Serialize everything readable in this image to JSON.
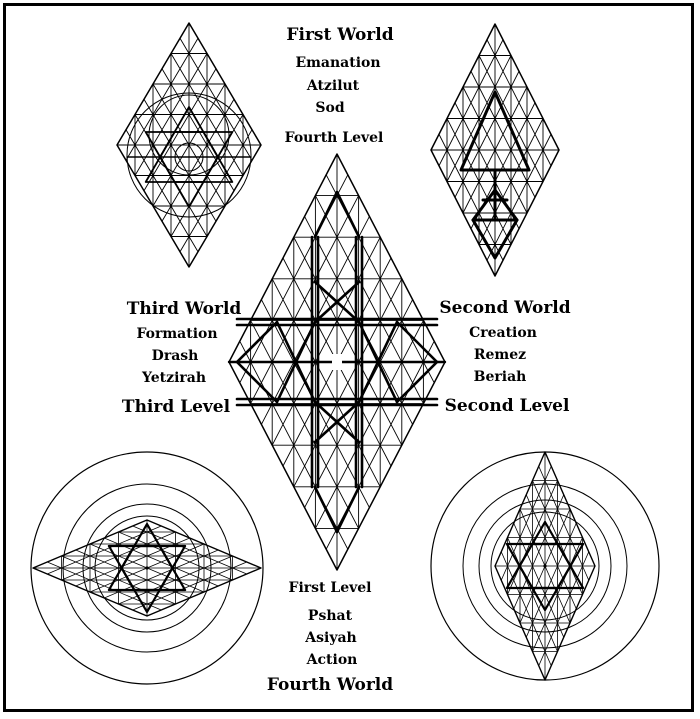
{
  "colors": {
    "ink": "#000000",
    "paper": "#ffffff"
  },
  "first_world": {
    "title": "First World",
    "lines": [
      "Emanation",
      "Atzilut",
      "Sod"
    ],
    "level": "Fourth Level"
  },
  "second_world": {
    "title": "Second World",
    "lines": [
      "Creation",
      "Remez",
      "Beriah"
    ],
    "level": "Second Level"
  },
  "third_world": {
    "title": "Third World",
    "lines": [
      "Formation",
      "Drash",
      "Yetzirah"
    ],
    "level": "Third Level"
  },
  "fourth_world": {
    "level": "First Level",
    "lines": [
      "Pshat",
      "Asiyah",
      "Action"
    ],
    "title": "Fourth World"
  }
}
